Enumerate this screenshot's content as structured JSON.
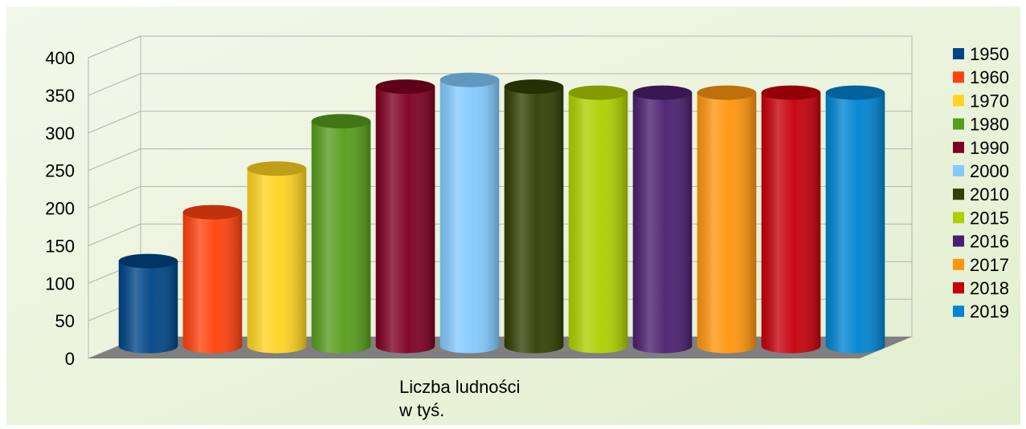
{
  "chart_data": {
    "type": "bar",
    "xlabel": "Liczba ludności\nw tyś.",
    "ylim": [
      0,
      400
    ],
    "yticks": [
      0,
      50,
      100,
      150,
      200,
      250,
      300,
      350,
      400
    ],
    "grid": true,
    "legend_position": "right",
    "categories": [
      "Liczba ludności\nw tyś."
    ],
    "series": [
      {
        "name": "1950",
        "value": 113,
        "color": "#004586"
      },
      {
        "name": "1960",
        "value": 178,
        "color": "#ff420e"
      },
      {
        "name": "1970",
        "value": 236,
        "color": "#ffd320"
      },
      {
        "name": "1980",
        "value": 299,
        "color": "#579d1c"
      },
      {
        "name": "1990",
        "value": 345,
        "color": "#7e0021"
      },
      {
        "name": "2000",
        "value": 354,
        "color": "#83caff"
      },
      {
        "name": "2010",
        "value": 345,
        "color": "#314004"
      },
      {
        "name": "2015",
        "value": 337,
        "color": "#aecf00"
      },
      {
        "name": "2016",
        "value": 337,
        "color": "#4b1f6f"
      },
      {
        "name": "2017",
        "value": 337,
        "color": "#ff950e"
      },
      {
        "name": "2018",
        "value": 337,
        "color": "#c5000b"
      },
      {
        "name": "2019",
        "value": 337,
        "color": "#0084d1"
      }
    ]
  }
}
